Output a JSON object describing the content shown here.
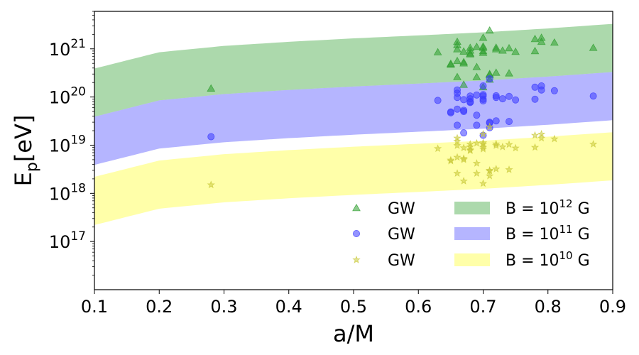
{
  "chart_data": {
    "type": "scatter",
    "x_scale": "linear",
    "y_scale": "log",
    "xlim": [
      0.1,
      0.9
    ],
    "ylim": [
      1e+16,
      6e+21
    ],
    "xlabel": "a/M",
    "ylabel": {
      "base": "E",
      "sub": "p",
      "unit": "[eV]"
    },
    "x_ticks": [
      {
        "value": 0.1,
        "label": "0.1"
      },
      {
        "value": 0.2,
        "label": "0.2"
      },
      {
        "value": 0.3,
        "label": "0.3"
      },
      {
        "value": 0.4,
        "label": "0.4"
      },
      {
        "value": 0.5,
        "label": "0.5"
      },
      {
        "value": 0.6,
        "label": "0.6"
      },
      {
        "value": 0.7,
        "label": "0.7"
      },
      {
        "value": 0.8,
        "label": "0.8"
      },
      {
        "value": 0.9,
        "label": "0.9"
      }
    ],
    "y_ticks": [
      {
        "value": 1e+17,
        "base": "10",
        "exp": "17"
      },
      {
        "value": 1e+18,
        "base": "10",
        "exp": "18"
      },
      {
        "value": 1e+19,
        "base": "10",
        "exp": "19"
      },
      {
        "value": 1e+20,
        "base": "10",
        "exp": "20"
      },
      {
        "value": 1e+21,
        "base": "10",
        "exp": "21"
      }
    ],
    "bands": [
      {
        "name": "B = 10^12 G",
        "label_base": "B = 10",
        "label_exp": "12",
        "label_unit": " G",
        "color": "#5ab45a",
        "opacity": 0.5,
        "x": [
          0.1,
          0.2,
          0.3,
          0.4,
          0.5,
          0.6,
          0.7,
          0.8,
          0.9
        ],
        "lower": [
          3.9e+19,
          8.5e+19,
          1.15e+20,
          1.4e+20,
          1.65e+20,
          1.9e+20,
          2.2e+20,
          2.65e+20,
          3.3e+20
        ],
        "upper": [
          3.9e+20,
          8.5e+20,
          1.15e+21,
          1.4e+21,
          1.65e+21,
          1.9e+21,
          2.2e+21,
          2.65e+21,
          3.3e+21
        ]
      },
      {
        "name": "B = 10^11 G",
        "label_base": "B = 10",
        "label_exp": "11",
        "label_unit": " G",
        "color": "#5a5aff",
        "opacity": 0.45,
        "x": [
          0.1,
          0.2,
          0.3,
          0.4,
          0.5,
          0.6,
          0.7,
          0.8,
          0.9
        ],
        "lower": [
          3.9e+18,
          8.5e+18,
          1.15e+19,
          1.4e+19,
          1.65e+19,
          1.9e+19,
          2.2e+19,
          2.65e+19,
          3.3e+19
        ],
        "upper": [
          3.9e+19,
          8.5e+19,
          1.15e+20,
          1.4e+20,
          1.65e+20,
          1.9e+20,
          2.2e+20,
          2.65e+20,
          3.3e+20
        ]
      },
      {
        "name": "B = 10^10 G",
        "label_base": "B = 10",
        "label_exp": "10",
        "label_unit": " G",
        "color": "#ffff70",
        "opacity": 0.6,
        "x": [
          0.1,
          0.2,
          0.3,
          0.4,
          0.5,
          0.6,
          0.7,
          0.8,
          0.9
        ],
        "lower": [
          2.2e+17,
          4.8e+17,
          6.5e+17,
          7.9e+17,
          9.3e+17,
          1.07e+18,
          1.24e+18,
          1.5e+18,
          1.86e+18
        ],
        "upper": [
          2.2e+18,
          4.8e+18,
          6.5e+18,
          7.9e+18,
          9.3e+18,
          1.07e+19,
          1.24e+19,
          1.5e+19,
          1.86e+19
        ]
      }
    ],
    "series": [
      {
        "name": "GW",
        "marker": "triangle",
        "color": "#2e9e2e",
        "x": [
          0.28,
          0.63,
          0.65,
          0.65,
          0.66,
          0.66,
          0.66,
          0.66,
          0.66,
          0.67,
          0.67,
          0.67,
          0.67,
          0.68,
          0.68,
          0.68,
          0.68,
          0.69,
          0.69,
          0.69,
          0.7,
          0.7,
          0.7,
          0.7,
          0.7,
          0.7,
          0.71,
          0.71,
          0.71,
          0.71,
          0.72,
          0.72,
          0.72,
          0.73,
          0.74,
          0.74,
          0.75,
          0.78,
          0.78,
          0.79,
          0.79,
          0.81,
          0.87
        ],
        "y": [
          1.5e+20,
          8.5e+20,
          4.7e+20,
          4.9e+20,
          1.4e+21,
          1.2e+21,
          9.8e+20,
          5.6e+20,
          2.6e+20,
          8.8e+20,
          5.3e+20,
          1.8e+20,
          5e+20,
          1.05e+21,
          9.2e+20,
          7.7e+20,
          8e+20,
          1.1e+21,
          4.2e+20,
          2.6e+20,
          1.7e+21,
          1.05e+21,
          9e+20,
          8.3e+20,
          1.6e+20,
          1.12e+21,
          2.4e+21,
          2.3e+20,
          2.9e+20,
          3e+20,
          3.2e+20,
          9.8e+20,
          1.06e+21,
          9.2e+20,
          1.03e+21,
          3.1e+20,
          8.7e+20,
          1.6e+21,
          9e+20,
          1.7e+21,
          1.4e+21,
          1.35e+21,
          1.05e+21
        ]
      },
      {
        "name": "GW",
        "marker": "circle",
        "color": "#3a3aff",
        "x": [
          0.28,
          0.63,
          0.65,
          0.65,
          0.66,
          0.66,
          0.66,
          0.66,
          0.66,
          0.67,
          0.67,
          0.67,
          0.67,
          0.68,
          0.68,
          0.68,
          0.68,
          0.69,
          0.69,
          0.69,
          0.7,
          0.7,
          0.7,
          0.7,
          0.7,
          0.7,
          0.71,
          0.71,
          0.71,
          0.71,
          0.72,
          0.72,
          0.72,
          0.73,
          0.74,
          0.74,
          0.75,
          0.78,
          0.78,
          0.79,
          0.79,
          0.81,
          0.87
        ],
        "y": [
          1.5e+19,
          8.5e+19,
          4.7e+19,
          4.9e+19,
          1.4e+20,
          1.2e+20,
          9.8e+19,
          5.6e+19,
          2.6e+19,
          8.8e+19,
          5.3e+19,
          1.8e+19,
          5e+19,
          1.05e+20,
          9.2e+19,
          7.7e+19,
          8e+19,
          1.1e+20,
          4.2e+19,
          2.6e+19,
          1.7e+20,
          1.05e+20,
          9e+19,
          8.3e+19,
          1.6e+19,
          1.12e+20,
          2.4e+20,
          2.3e+19,
          2.9e+19,
          3e+19,
          3.2e+19,
          9.8e+19,
          1.06e+20,
          9.2e+19,
          1.03e+20,
          3.1e+19,
          8.7e+19,
          1.6e+20,
          9e+19,
          1.7e+20,
          1.4e+20,
          1.35e+20,
          1.05e+20
        ]
      },
      {
        "name": "GW",
        "marker": "star",
        "color": "#c9c93a",
        "x": [
          0.28,
          0.63,
          0.65,
          0.65,
          0.66,
          0.66,
          0.66,
          0.66,
          0.66,
          0.67,
          0.67,
          0.67,
          0.67,
          0.68,
          0.68,
          0.68,
          0.68,
          0.69,
          0.69,
          0.69,
          0.7,
          0.7,
          0.7,
          0.7,
          0.7,
          0.7,
          0.71,
          0.71,
          0.71,
          0.71,
          0.72,
          0.72,
          0.72,
          0.73,
          0.74,
          0.74,
          0.75,
          0.78,
          0.78,
          0.79,
          0.79,
          0.81,
          0.87
        ],
        "y": [
          1.5e+18,
          8.5e+18,
          4.7e+18,
          4.9e+18,
          1.4e+19,
          1.2e+19,
          9.8e+18,
          5.6e+18,
          2.6e+18,
          8.8e+18,
          5.3e+18,
          1.8e+18,
          5e+18,
          1.05e+19,
          9.2e+18,
          7.7e+18,
          8e+18,
          1.1e+19,
          4.2e+18,
          2.6e+18,
          1.7e+19,
          1.05e+19,
          9e+18,
          8.3e+18,
          1.6e+18,
          1.12e+19,
          2.4e+19,
          2.3e+18,
          2.9e+18,
          3e+18,
          3.2e+18,
          9.8e+18,
          1.06e+19,
          9.2e+18,
          1.03e+19,
          3.1e+18,
          8.7e+18,
          1.6e+19,
          9e+18,
          1.7e+19,
          1.4e+19,
          1.35e+19,
          1.05e+19
        ]
      }
    ],
    "legend": {
      "placement": "lower-right",
      "columns": 2
    }
  }
}
